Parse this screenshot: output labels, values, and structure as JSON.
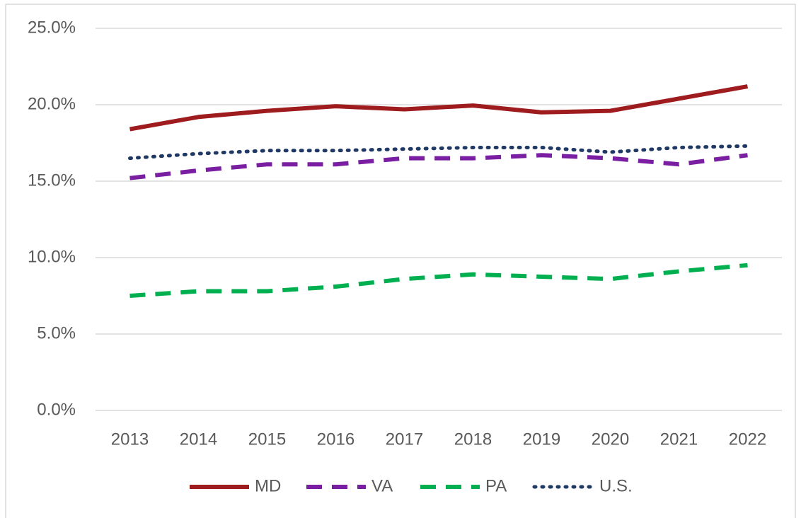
{
  "chart_data": {
    "type": "line",
    "categories": [
      "2013",
      "2014",
      "2015",
      "2016",
      "2017",
      "2018",
      "2019",
      "2020",
      "2021",
      "2022"
    ],
    "series": [
      {
        "name": "MD",
        "color": "#9e1b1e",
        "dash": "solid",
        "values": [
          18.4,
          19.2,
          19.6,
          19.9,
          19.7,
          19.95,
          19.5,
          19.6,
          20.4,
          21.2
        ]
      },
      {
        "name": "VA",
        "color": "#7b1fa2",
        "dash": "dash",
        "values": [
          15.2,
          15.7,
          16.1,
          16.1,
          16.5,
          16.5,
          16.7,
          16.5,
          16.1,
          16.7
        ]
      },
      {
        "name": "PA",
        "color": "#00b050",
        "dash": "dash",
        "values": [
          7.5,
          7.8,
          7.8,
          8.1,
          8.6,
          8.9,
          8.75,
          8.6,
          9.1,
          9.5
        ]
      },
      {
        "name": "U.S.",
        "color": "#1f3864",
        "dash": "dot",
        "values": [
          16.5,
          16.8,
          17.0,
          17.0,
          17.1,
          17.2,
          17.2,
          16.9,
          17.2,
          17.3
        ]
      }
    ],
    "ylim": [
      0,
      25
    ],
    "yticks": [
      {
        "value": 0,
        "label": "0.0%"
      },
      {
        "value": 5,
        "label": "5.0%"
      },
      {
        "value": 10,
        "label": "10.0%"
      },
      {
        "value": 15,
        "label": "15.0%"
      },
      {
        "value": 20,
        "label": "20.0%"
      },
      {
        "value": 25,
        "label": "25.0%"
      }
    ],
    "grid": true,
    "legend": "bottom"
  }
}
